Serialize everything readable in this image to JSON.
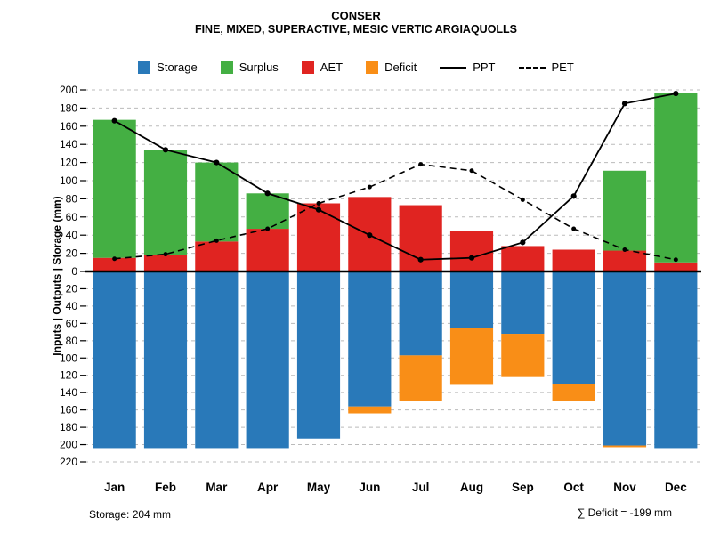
{
  "header": {
    "title": "CONSER",
    "subtitle": "FINE, MIXED, SUPERACTIVE, MESIC VERTIC ARGIAQUOLLS"
  },
  "legend": {
    "items": [
      {
        "label": "Storage",
        "type": "swatch",
        "color": "#2979B9"
      },
      {
        "label": "Surplus",
        "type": "swatch",
        "color": "#44AF43"
      },
      {
        "label": "AET",
        "type": "swatch",
        "color": "#E02421"
      },
      {
        "label": "Deficit",
        "type": "swatch",
        "color": "#F98E17"
      },
      {
        "label": "PPT",
        "type": "line",
        "style": "solid"
      },
      {
        "label": "PET",
        "type": "line",
        "style": "dashed"
      }
    ]
  },
  "axis": {
    "y_label": "Inputs | Outputs | Storage   (mm)"
  },
  "footer": {
    "storage_note": "Storage: 204 mm",
    "deficit_note": "∑ Deficit = -199 mm"
  },
  "chart_data": {
    "type": "bar",
    "title": "CONSER",
    "subtitle": "FINE, MIXED, SUPERACTIVE, MESIC VERTIC ARGIAQUOLLS",
    "ylabel": "Inputs | Outputs | Storage (mm)",
    "categories": [
      "Jan",
      "Feb",
      "Mar",
      "Apr",
      "May",
      "Jun",
      "Jul",
      "Aug",
      "Sep",
      "Oct",
      "Nov",
      "Dec"
    ],
    "y_up_max": 200,
    "y_down_max": 220,
    "tick_step": 20,
    "grid": true,
    "legend_position": "top",
    "colors": {
      "storage": "#2979B9",
      "surplus": "#44AF43",
      "aet": "#E02421",
      "deficit": "#F98E17",
      "line": "#000000",
      "grid": "#bbbbbb"
    },
    "series": [
      {
        "name": "AET",
        "direction": "up",
        "stack_order": 1,
        "values": [
          15,
          18,
          33,
          47,
          75,
          82,
          73,
          45,
          28,
          24,
          23,
          10
        ]
      },
      {
        "name": "Surplus",
        "direction": "up",
        "stack_order": 2,
        "values": [
          152,
          116,
          87,
          39,
          0,
          0,
          0,
          0,
          0,
          0,
          88,
          187
        ]
      },
      {
        "name": "Storage",
        "direction": "down",
        "stack_order": 1,
        "values": [
          204,
          204,
          204,
          204,
          193,
          156,
          97,
          65,
          72,
          130,
          201,
          204
        ]
      },
      {
        "name": "Deficit",
        "direction": "down",
        "stack_order": 2,
        "values": [
          0,
          0,
          0,
          0,
          0,
          8,
          53,
          66,
          50,
          20,
          2,
          0
        ]
      }
    ],
    "lines": [
      {
        "name": "PPT",
        "style": "solid",
        "values": [
          166,
          134,
          120,
          86,
          68,
          40,
          13,
          15,
          32,
          83,
          185,
          196
        ]
      },
      {
        "name": "PET",
        "style": "dashed",
        "values": [
          14,
          19,
          34,
          47,
          75,
          93,
          118,
          111,
          79,
          47,
          24,
          13
        ]
      }
    ],
    "annotations": {
      "storage_total_mm": 204,
      "deficit_sum_mm": -199
    }
  }
}
